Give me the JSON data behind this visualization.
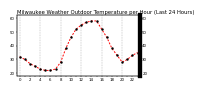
{
  "title": "Milwaukee Weather Outdoor Temperature per Hour (Last 24 Hours)",
  "hours": [
    0,
    1,
    2,
    3,
    4,
    5,
    6,
    7,
    8,
    9,
    10,
    11,
    12,
    13,
    14,
    15,
    16,
    17,
    18,
    19,
    20,
    21,
    22,
    23
  ],
  "temps": [
    32,
    30,
    27,
    25,
    23,
    22,
    22,
    23,
    28,
    38,
    46,
    52,
    55,
    57,
    58,
    58,
    52,
    46,
    38,
    33,
    28,
    30,
    33,
    35
  ],
  "line_color": "#ff0000",
  "marker_color": "#000000",
  "bg_color": "#ffffff",
  "grid_color": "#888888",
  "grid_vlines": [
    0,
    4,
    8,
    12,
    16,
    20
  ],
  "ylim": [
    18,
    62
  ],
  "ytick_values": [
    20,
    30,
    40,
    50,
    60
  ],
  "ytick_labels": [
    "20",
    "30",
    "40",
    "50",
    "60"
  ],
  "title_fontsize": 3.8,
  "tick_fontsize": 2.8,
  "line_width": 0.7,
  "marker_size": 1.5,
  "right_bar_color": "#000000",
  "right_bar_width": 3.0
}
